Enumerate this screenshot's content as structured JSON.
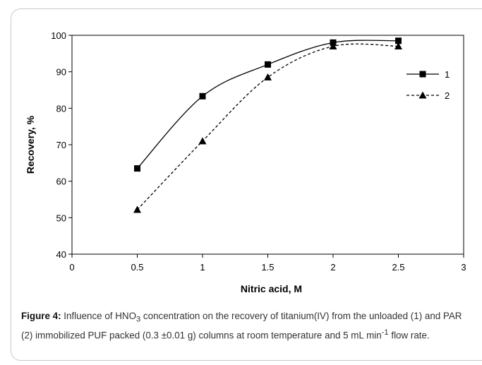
{
  "chart_data": {
    "type": "line",
    "xlabel": "Nitric acid, M",
    "ylabel": "Recovery, %",
    "xlim": [
      0,
      3
    ],
    "ylim": [
      40,
      100
    ],
    "x_ticks": [
      "0",
      "0.5",
      "1",
      "1.5",
      "2",
      "2.5",
      "3"
    ],
    "y_ticks": [
      "40",
      "50",
      "60",
      "70",
      "80",
      "90",
      "100"
    ],
    "grid": false,
    "legend_position": "right",
    "series": [
      {
        "name": "1",
        "x": [
          0.5,
          1,
          1.5,
          2,
          2.5
        ],
        "values": [
          63.5,
          83.3,
          92,
          98,
          98.5
        ],
        "marker": "square",
        "line_style": "solid",
        "color": "#000000"
      },
      {
        "name": "2",
        "x": [
          0.5,
          1,
          1.5,
          2,
          2.5
        ],
        "values": [
          52.2,
          71,
          88.5,
          97,
          97
        ],
        "marker": "triangle",
        "line_style": "dashed",
        "color": "#000000"
      }
    ]
  },
  "caption": {
    "label": "Figure 4:",
    "text_1": " Influence of HNO",
    "sub_1": "3",
    "text_2": " concentration on the recovery of titanium(IV) from the unloaded (1) and PAR (2) immobilized PUF packed (0.3 ±0.01 g) columns at room temperature and 5 mL min",
    "sup_1": "-1",
    "text_3": " flow rate."
  }
}
